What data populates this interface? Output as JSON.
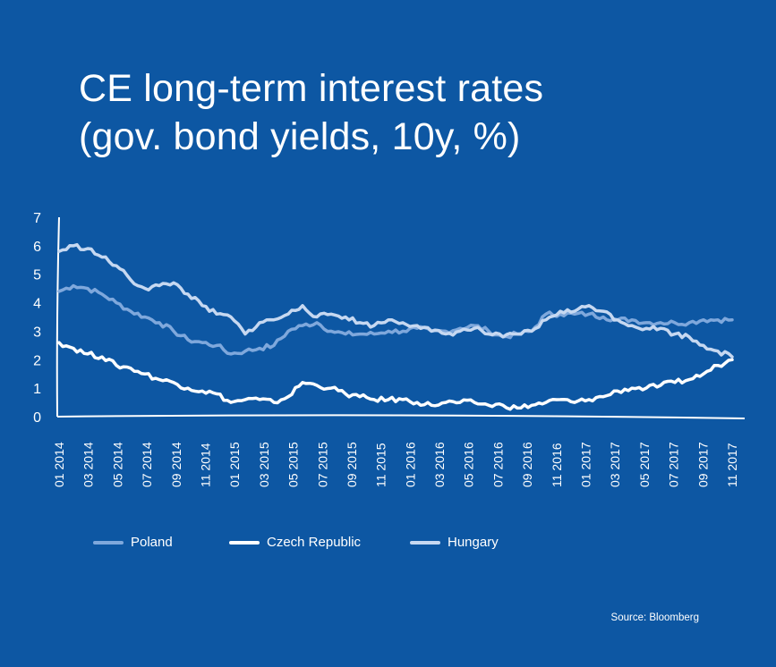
{
  "title": {
    "line1": "CE long-term interest rates",
    "line2": "(gov. bond yields, 10y, %)"
  },
  "source": "Source: Bloomberg",
  "colors": {
    "background": "#0d57a3",
    "poland": "#7fa8dc",
    "czech": "#ffffff",
    "hungary": "#c6d8f1"
  },
  "chart_data": {
    "type": "line",
    "title": "CE long-term interest rates (gov. bond yields, 10y, %)",
    "xlabel": "",
    "ylabel": "",
    "ylim": [
      0,
      7
    ],
    "yticks": [
      "0",
      "1",
      "2",
      "3",
      "4",
      "5",
      "6",
      "7"
    ],
    "xticks": [
      "01 2014",
      "03 2014",
      "05 2014",
      "07 2014",
      "09 2014",
      "11 2014",
      "01 2015",
      "03 2015",
      "05 2015",
      "07 2015",
      "09 2015",
      "11 2015",
      "01 2016",
      "03 2016",
      "05 2016",
      "07 2016",
      "09 2016",
      "11 2016",
      "01 2017",
      "03 2017",
      "05 2017",
      "07 2017",
      "09 2017",
      "11 2017"
    ],
    "grid": false,
    "legend_position": "bottom",
    "x": [
      "2014-01",
      "2014-02",
      "2014-03",
      "2014-04",
      "2014-05",
      "2014-06",
      "2014-07",
      "2014-08",
      "2014-09",
      "2014-10",
      "2014-11",
      "2014-12",
      "2015-01",
      "2015-02",
      "2015-03",
      "2015-04",
      "2015-05",
      "2015-06",
      "2015-07",
      "2015-08",
      "2015-09",
      "2015-10",
      "2015-11",
      "2015-12",
      "2016-01",
      "2016-02",
      "2016-03",
      "2016-04",
      "2016-05",
      "2016-06",
      "2016-07",
      "2016-08",
      "2016-09",
      "2016-10",
      "2016-11",
      "2016-12",
      "2017-01",
      "2017-02",
      "2017-03",
      "2017-04",
      "2017-05",
      "2017-06",
      "2017-07",
      "2017-08",
      "2017-09",
      "2017-10",
      "2017-11",
      "2017-12"
    ],
    "series": [
      {
        "name": "Poland",
        "values": [
          4.4,
          4.6,
          4.5,
          4.3,
          4.0,
          3.7,
          3.5,
          3.3,
          3.0,
          2.7,
          2.6,
          2.5,
          2.2,
          2.3,
          2.4,
          2.5,
          3.0,
          3.2,
          3.3,
          3.0,
          2.9,
          2.9,
          2.9,
          3.0,
          3.0,
          3.1,
          3.0,
          3.0,
          3.1,
          3.2,
          3.0,
          2.8,
          2.9,
          3.0,
          3.6,
          3.6,
          3.6,
          3.6,
          3.5,
          3.4,
          3.4,
          3.3,
          3.3,
          3.3,
          3.3,
          3.4,
          3.4,
          3.4
        ]
      },
      {
        "name": "Czech Republic",
        "values": [
          2.6,
          2.4,
          2.2,
          2.1,
          1.8,
          1.7,
          1.5,
          1.3,
          1.2,
          1.0,
          0.9,
          0.8,
          0.5,
          0.6,
          0.6,
          0.5,
          0.7,
          1.2,
          1.1,
          1.0,
          0.8,
          0.7,
          0.6,
          0.6,
          0.6,
          0.5,
          0.4,
          0.5,
          0.5,
          0.5,
          0.4,
          0.4,
          0.3,
          0.4,
          0.5,
          0.6,
          0.5,
          0.6,
          0.7,
          0.9,
          1.0,
          1.0,
          1.1,
          1.2,
          1.3,
          1.5,
          1.8,
          2.0
        ]
      },
      {
        "name": "Hungary",
        "values": [
          5.8,
          6.0,
          5.9,
          5.6,
          5.3,
          4.8,
          4.5,
          4.6,
          4.7,
          4.3,
          3.9,
          3.6,
          3.5,
          2.9,
          3.3,
          3.4,
          3.6,
          3.9,
          3.5,
          3.6,
          3.5,
          3.3,
          3.2,
          3.4,
          3.3,
          3.2,
          3.0,
          2.9,
          3.0,
          3.1,
          2.9,
          2.8,
          2.9,
          3.0,
          3.4,
          3.7,
          3.7,
          3.9,
          3.7,
          3.4,
          3.2,
          3.1,
          3.1,
          2.9,
          2.8,
          2.5,
          2.3,
          2.1
        ]
      }
    ]
  }
}
